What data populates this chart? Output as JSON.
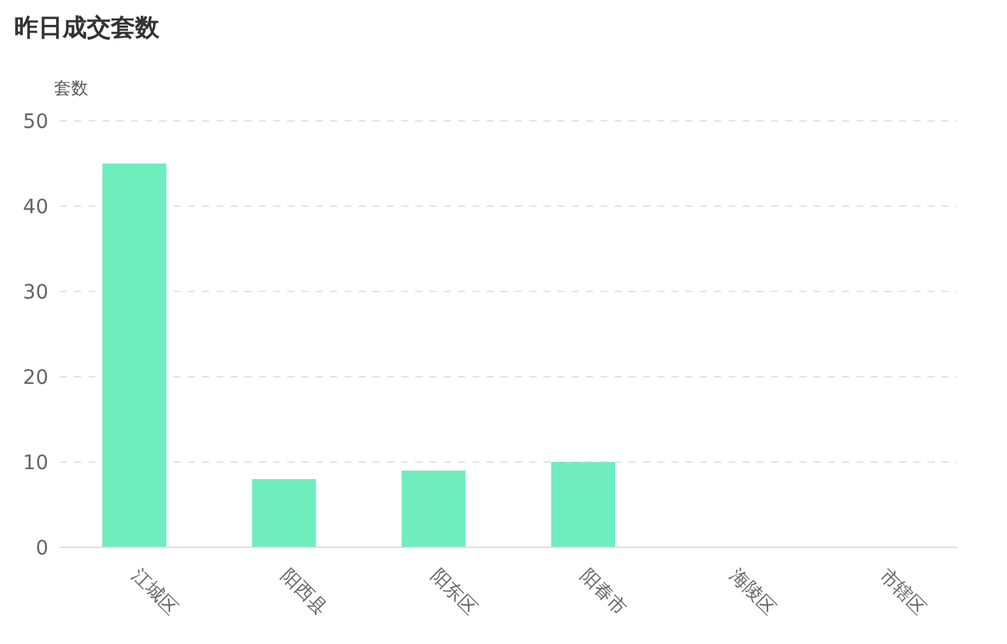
{
  "chart_data": {
    "type": "bar",
    "title": "昨日成交套数",
    "ylabel": "套数",
    "categories": [
      "江城区",
      "阳西县",
      "阳东区",
      "阳春市",
      "海陵区",
      "市辖区"
    ],
    "values": [
      45,
      8,
      9,
      10,
      0,
      0
    ],
    "color": "#70edbf",
    "ylim": [
      0,
      50
    ],
    "yticks": [
      0,
      10,
      20,
      30,
      40,
      50
    ],
    "grid": "y"
  }
}
